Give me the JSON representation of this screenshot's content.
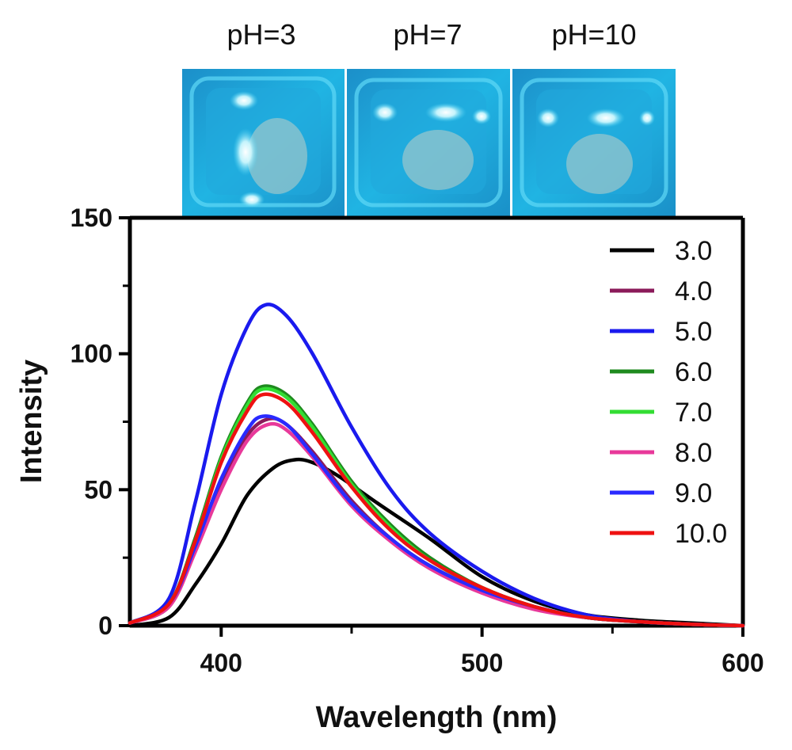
{
  "photos": {
    "labels": [
      "pH=3",
      "pH=7",
      "pH=10"
    ]
  },
  "chart_data": {
    "type": "line",
    "xlabel": "Wavelength (nm)",
    "ylabel": "Intensity",
    "xlim": [
      365,
      600
    ],
    "ylim": [
      0,
      150
    ],
    "x_ticks": [
      400,
      500,
      600
    ],
    "y_ticks": [
      0,
      50,
      100,
      150
    ],
    "legend_position": "top-right",
    "grid": false,
    "series": [
      {
        "name": "3.0",
        "color": "#000000",
        "x": [
          365,
          380,
          390,
          400,
          410,
          420,
          428,
          435,
          445,
          460,
          480,
          500,
          520,
          540,
          560,
          580,
          600
        ],
        "y": [
          0,
          3,
          15,
          30,
          48,
          58,
          61,
          60,
          55,
          45,
          32,
          18,
          9,
          4,
          2,
          1,
          0
        ]
      },
      {
        "name": "4.0",
        "color": "#8b1a5a",
        "x": [
          365,
          380,
          390,
          400,
          410,
          418,
          425,
          435,
          450,
          465,
          480,
          500,
          520,
          540,
          560,
          580,
          600
        ],
        "y": [
          1,
          7,
          28,
          52,
          70,
          76,
          74,
          64,
          46,
          32,
          22,
          13,
          7,
          3,
          1.5,
          0.5,
          0
        ]
      },
      {
        "name": "5.0",
        "color": "#1a1aee",
        "x": [
          365,
          380,
          390,
          400,
          410,
          417,
          425,
          435,
          450,
          465,
          480,
          500,
          520,
          540,
          560,
          580,
          600
        ],
        "y": [
          1,
          10,
          45,
          85,
          110,
          118,
          114,
          100,
          73,
          50,
          34,
          20,
          10,
          4,
          1.5,
          0.5,
          0
        ]
      },
      {
        "name": "6.0",
        "color": "#1e8a1e",
        "x": [
          365,
          380,
          390,
          400,
          410,
          416,
          425,
          435,
          450,
          465,
          480,
          500,
          520,
          540,
          560,
          580,
          600
        ],
        "y": [
          1,
          8,
          32,
          62,
          82,
          88,
          85,
          74,
          53,
          37,
          25,
          14,
          7,
          3,
          1.5,
          0.5,
          0
        ]
      },
      {
        "name": "7.0",
        "color": "#33dd33",
        "x": [
          365,
          380,
          390,
          400,
          410,
          416,
          425,
          435,
          450,
          465,
          480,
          500,
          520,
          540,
          560,
          580,
          600
        ],
        "y": [
          1,
          8,
          31,
          61,
          81,
          87,
          84,
          73,
          52,
          36,
          24,
          14,
          7,
          3,
          1.5,
          0.5,
          0
        ]
      },
      {
        "name": "8.0",
        "color": "#e8399a",
        "x": [
          365,
          380,
          390,
          400,
          410,
          418,
          425,
          435,
          450,
          465,
          480,
          500,
          520,
          540,
          560,
          580,
          600
        ],
        "y": [
          1,
          7,
          27,
          50,
          68,
          74,
          72,
          62,
          44,
          31,
          21,
          12,
          6,
          3,
          1.5,
          0.5,
          0
        ]
      },
      {
        "name": "9.0",
        "color": "#2a2aff",
        "x": [
          365,
          380,
          390,
          400,
          410,
          416,
          425,
          435,
          450,
          465,
          480,
          500,
          520,
          540,
          560,
          580,
          600
        ],
        "y": [
          1,
          8,
          29,
          54,
          72,
          77,
          74,
          63,
          45,
          32,
          22,
          13,
          7,
          3,
          1.5,
          0.5,
          0
        ]
      },
      {
        "name": "10.0",
        "color": "#ee1111",
        "x": [
          365,
          380,
          390,
          400,
          410,
          416,
          425,
          435,
          450,
          465,
          480,
          500,
          520,
          540,
          560,
          580,
          600
        ],
        "y": [
          1,
          8,
          31,
          60,
          79,
          85,
          82,
          71,
          51,
          35,
          24,
          14,
          7,
          3,
          1.5,
          0.5,
          0
        ]
      }
    ]
  }
}
